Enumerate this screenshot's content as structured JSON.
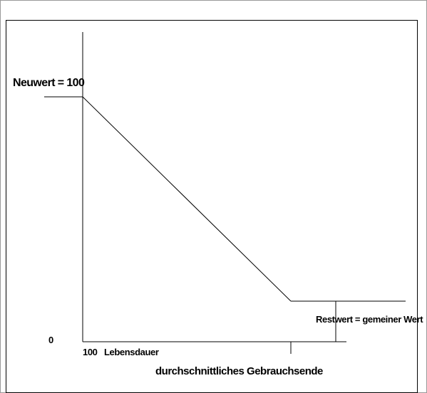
{
  "diagram": {
    "labels": {
      "neuwert": "Neuwert = 100",
      "restwert": "Restwert = gemeiner Wert",
      "zero": "0",
      "x_start": "100",
      "x_axis": "Lebensdauer",
      "gebrauchsende": "durchschnittliches Gebrauchsende"
    },
    "colors": {
      "line": "#000000",
      "frame": "#000000",
      "background": "#ffffff"
    }
  }
}
